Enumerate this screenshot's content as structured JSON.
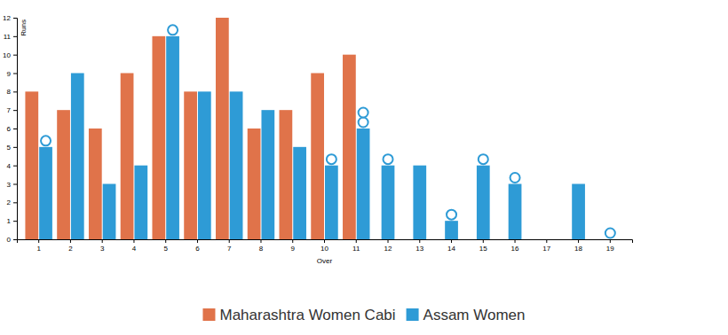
{
  "chart_data": {
    "type": "bar",
    "x_label": "Over",
    "y_label": "Runs",
    "categories": [
      "1",
      "2",
      "3",
      "4",
      "5",
      "6",
      "7",
      "8",
      "9",
      "10",
      "11",
      "12",
      "13",
      "14",
      "15",
      "16",
      "17",
      "18",
      "19"
    ],
    "series": [
      {
        "name": "Maharashtra Women Cabi",
        "color": "#e0734a",
        "values": [
          8,
          7,
          6,
          9,
          11,
          8,
          12,
          6,
          7,
          9,
          10,
          null,
          null,
          null,
          null,
          null,
          null,
          null,
          null
        ]
      },
      {
        "name": "Assam Women",
        "color": "#2e9bd6",
        "values": [
          5,
          9,
          3,
          4,
          11,
          8,
          8,
          7,
          5,
          4,
          6,
          4,
          4,
          1,
          4,
          3,
          0,
          3,
          0
        ],
        "wickets": [
          1,
          0,
          0,
          0,
          1,
          0,
          0,
          0,
          0,
          1,
          2,
          1,
          0,
          1,
          1,
          1,
          0,
          0,
          1
        ]
      }
    ],
    "ylim": [
      0,
      12
    ],
    "yticks": [
      0,
      1,
      2,
      3,
      4,
      5,
      6,
      7,
      8,
      9,
      10,
      11,
      12
    ],
    "legend": "bottom"
  }
}
